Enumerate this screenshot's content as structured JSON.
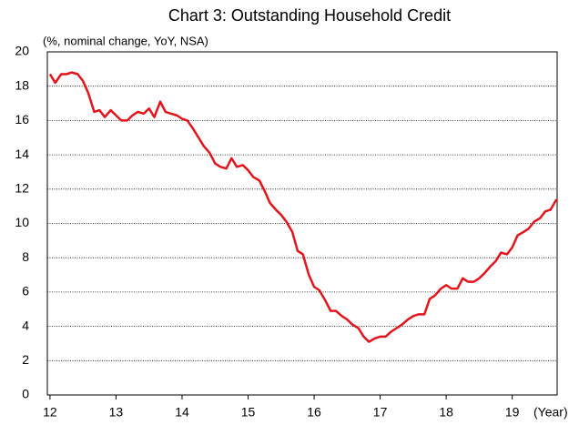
{
  "chart_data": {
    "type": "line",
    "title": "Chart 3: Outstanding Household Credit",
    "ylabel": "(%, nominal change, YoY, NSA)",
    "xlabel": "(Year)",
    "x": [
      12,
      12.08,
      12.17,
      12.25,
      12.33,
      12.42,
      12.5,
      12.58,
      12.67,
      12.75,
      12.83,
      12.92,
      13,
      13.08,
      13.17,
      13.25,
      13.33,
      13.42,
      13.5,
      13.58,
      13.67,
      13.75,
      13.83,
      13.92,
      14,
      14.08,
      14.17,
      14.25,
      14.33,
      14.42,
      14.5,
      14.58,
      14.67,
      14.75,
      14.83,
      14.92,
      15,
      15.08,
      15.17,
      15.25,
      15.33,
      15.42,
      15.5,
      15.58,
      15.67,
      15.75,
      15.83,
      15.92,
      16,
      16.08,
      16.17,
      16.25,
      16.33,
      16.42,
      16.5,
      16.58,
      16.67,
      16.75,
      16.83,
      16.92,
      17,
      17.08,
      17.17,
      17.25,
      17.33,
      17.42,
      17.5,
      17.58,
      17.67,
      17.75,
      17.83,
      17.92,
      18,
      18.08,
      18.17,
      18.25,
      18.33,
      18.42,
      18.5,
      18.58,
      18.67,
      18.75,
      18.83,
      18.92,
      19,
      19.08,
      19.17,
      19.25,
      19.33,
      19.42,
      19.5,
      19.58,
      19.67
    ],
    "series": [
      {
        "name": "Outstanding Household Credit",
        "color": "#e3141b",
        "values": [
          18.7,
          18.2,
          18.7,
          18.7,
          18.8,
          18.7,
          18.3,
          17.6,
          16.5,
          16.6,
          16.2,
          16.6,
          16.3,
          16.0,
          16.0,
          16.3,
          16.5,
          16.4,
          16.7,
          16.2,
          17.1,
          16.5,
          16.4,
          16.3,
          16.1,
          16.0,
          15.5,
          15.0,
          14.5,
          14.1,
          13.5,
          13.3,
          13.2,
          13.8,
          13.3,
          13.4,
          13.1,
          12.7,
          12.5,
          11.9,
          11.2,
          10.8,
          10.5,
          10.1,
          9.5,
          8.4,
          8.2,
          7.0,
          6.3,
          6.1,
          5.5,
          4.9,
          4.9,
          4.6,
          4.4,
          4.1,
          3.9,
          3.4,
          3.1,
          3.3,
          3.4,
          3.4,
          3.7,
          3.9,
          4.1,
          4.4,
          4.6,
          4.7,
          4.7,
          5.6,
          5.8,
          6.2,
          6.4,
          6.2,
          6.2,
          6.8,
          6.6,
          6.6,
          6.8,
          7.1,
          7.5,
          7.8,
          8.3,
          8.2,
          8.6,
          9.3,
          9.5,
          9.7,
          10.1,
          10.3,
          10.7,
          10.8,
          11.4
        ]
      }
    ],
    "xlim": [
      11.96,
      19.68
    ],
    "xticks": [
      12,
      13,
      14,
      15,
      16,
      17,
      18,
      19
    ],
    "ylim": [
      0,
      20
    ],
    "yticks": [
      0,
      2,
      4,
      6,
      8,
      10,
      12,
      14,
      16,
      18,
      20
    ],
    "grid": true
  }
}
